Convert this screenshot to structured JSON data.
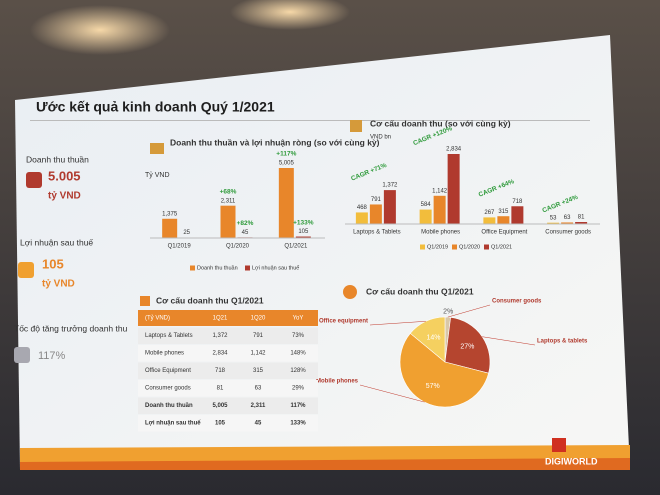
{
  "slide": {
    "title": "Ước kết quả kinh doanh Quý 1/2021",
    "kpis": [
      {
        "label": "Doanh thu thuần",
        "value": "5.005",
        "unit": "tỷ VND"
      },
      {
        "label": "Lợi nhuận sau thuế",
        "value": "105",
        "unit": "tỷ VND"
      },
      {
        "label": "Tốc độ tăng trưởng doanh thu",
        "value": "117%"
      }
    ],
    "logo": "DIGIWORLD"
  },
  "table": {
    "title": "Cơ cấu doanh thu Q1/2021",
    "header": [
      "(Tỷ VND)",
      "1Q21",
      "1Q20",
      "YoY"
    ],
    "rows": [
      [
        "Laptops & Tablets",
        "1,372",
        "791",
        "73%"
      ],
      [
        "Mobile phones",
        "2,834",
        "1,142",
        "148%"
      ],
      [
        "Office Equipment",
        "718",
        "315",
        "128%"
      ],
      [
        "Consumer goods",
        "81",
        "63",
        "29%"
      ],
      [
        "Doanh thu thuần",
        "5,005",
        "2,311",
        "117%"
      ],
      [
        "Lợi nhuận sau thuế",
        "105",
        "45",
        "133%"
      ]
    ]
  },
  "chart_data": [
    {
      "type": "bar",
      "title": "Doanh thu thuần và lợi nhuận ròng (so với cùng kỳ)",
      "unit": "Tỷ VND",
      "categories": [
        "Q1/2019",
        "Q1/2020",
        "Q1/2021"
      ],
      "series": [
        {
          "name": "Doanh thu thuần",
          "color": "#e8862a",
          "values": [
            1375,
            2311,
            5005
          ],
          "value_labels": [
            "1,375",
            "2,311",
            "5,005"
          ],
          "growth_labels": [
            null,
            "+68%",
            "+117%"
          ]
        },
        {
          "name": "Lợi nhuận sau thuế",
          "color": "#b03a2e",
          "values": [
            25,
            45,
            105
          ],
          "growth_labels": [
            null,
            "+82%",
            "+133%"
          ]
        }
      ]
    },
    {
      "type": "bar",
      "title": "Cơ cấu doanh thu (so với cùng kỳ)",
      "unit": "VND bn",
      "categories": [
        "Laptops & Tablets",
        "Mobile phones",
        "Office Equipment",
        "Consumer goods"
      ],
      "cagr_labels": [
        "CAGR +71%",
        "CAGR +120%",
        "CAGR +64%",
        "CAGR +24%"
      ],
      "series": [
        {
          "name": "Q1/2019",
          "color": "#f2bd3c",
          "values": [
            468,
            584,
            267,
            53
          ]
        },
        {
          "name": "Q1/2020",
          "color": "#e8862a",
          "values": [
            791,
            1142,
            315,
            63
          ],
          "value_labels": [
            "791",
            "1,142",
            "315",
            "63"
          ]
        },
        {
          "name": "Q1/2021",
          "color": "#b03a2e",
          "values": [
            1372,
            2834,
            718,
            81
          ],
          "value_labels": [
            "1,372",
            "2,834",
            "718",
            "81"
          ]
        }
      ]
    },
    {
      "type": "pie",
      "title": "Cơ cấu doanh thu Q1/2021",
      "categories": [
        "Consumer goods",
        "Laptops & tablets",
        "Mobile phones",
        "Office equipment"
      ],
      "values": [
        2,
        27,
        57,
        14
      ],
      "value_labels": [
        "2%",
        "27%",
        "57%",
        "14%"
      ],
      "colors": [
        "#d9c8a8",
        "#b5452f",
        "#f0a030",
        "#f5d060"
      ]
    }
  ]
}
